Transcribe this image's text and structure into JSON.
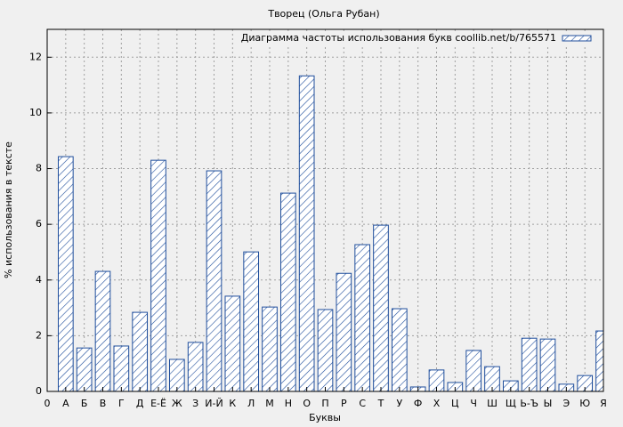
{
  "chart_data": {
    "type": "bar",
    "title": "Творец (Ольга Рубан)",
    "x_label": "Буквы",
    "y_label": "% использования в тексте",
    "x": [
      1,
      2,
      3,
      4,
      5,
      6,
      7,
      8,
      9,
      10,
      11,
      12,
      13,
      14,
      15,
      16,
      17,
      18,
      19,
      20,
      21,
      22,
      23,
      24,
      25,
      26,
      27,
      28,
      29,
      30
    ],
    "series": [
      {
        "name": "Диаграмма частоты использования букв coollib.net/b/765571",
        "color": "#1f4e9c",
        "values": [
          8.43,
          1.56,
          4.31,
          1.63,
          2.84,
          8.3,
          1.15,
          1.76,
          7.92,
          3.42,
          5.01,
          3.03,
          7.12,
          11.33,
          2.94,
          4.24,
          5.27,
          5.97,
          2.97,
          0.16,
          0.77,
          0.32,
          1.47,
          0.89,
          0.38,
          1.91,
          1.88,
          0.26,
          0.57,
          2.17
        ]
      }
    ],
    "xlim": [
      0,
      30
    ],
    "xticks": [
      0,
      {
        "value": 1,
        "label": "А"
      },
      {
        "value": 2,
        "label": "Б"
      },
      {
        "value": 3,
        "label": "В"
      },
      {
        "value": 4,
        "label": "Г"
      },
      {
        "value": 5,
        "label": "Д"
      },
      {
        "value": 6,
        "label": "Е-Ё"
      },
      {
        "value": 7,
        "label": "Ж"
      },
      {
        "value": 8,
        "label": "З"
      },
      {
        "value": 9,
        "label": "И-Й"
      },
      {
        "value": 10,
        "label": "К"
      },
      {
        "value": 11,
        "label": "Л"
      },
      {
        "value": 12,
        "label": "М"
      },
      {
        "value": 13,
        "label": "Н"
      },
      {
        "value": 14,
        "label": "О"
      },
      {
        "value": 15,
        "label": "П"
      },
      {
        "value": 16,
        "label": "Р"
      },
      {
        "value": 17,
        "label": "С"
      },
      {
        "value": 18,
        "label": "Т"
      },
      {
        "value": 19,
        "label": "У"
      },
      {
        "value": 20,
        "label": "Ф"
      },
      {
        "value": 21,
        "label": "Х"
      },
      {
        "value": 22,
        "label": "Ц"
      },
      {
        "value": 23,
        "label": "Ч"
      },
      {
        "value": 24,
        "label": "Ш"
      },
      {
        "value": 25,
        "label": "Щ"
      },
      {
        "value": 26,
        "label": "Ь-Ъ"
      },
      {
        "value": 27,
        "label": "Ы"
      },
      {
        "value": 28,
        "label": "Э"
      },
      {
        "value": 29,
        "label": "Ю"
      },
      {
        "value": 30,
        "label": "Я"
      }
    ],
    "ylim": [
      0,
      13
    ],
    "yticks": [
      0,
      2,
      4,
      6,
      8,
      10,
      12
    ],
    "grid": true,
    "legend": "top-right"
  }
}
